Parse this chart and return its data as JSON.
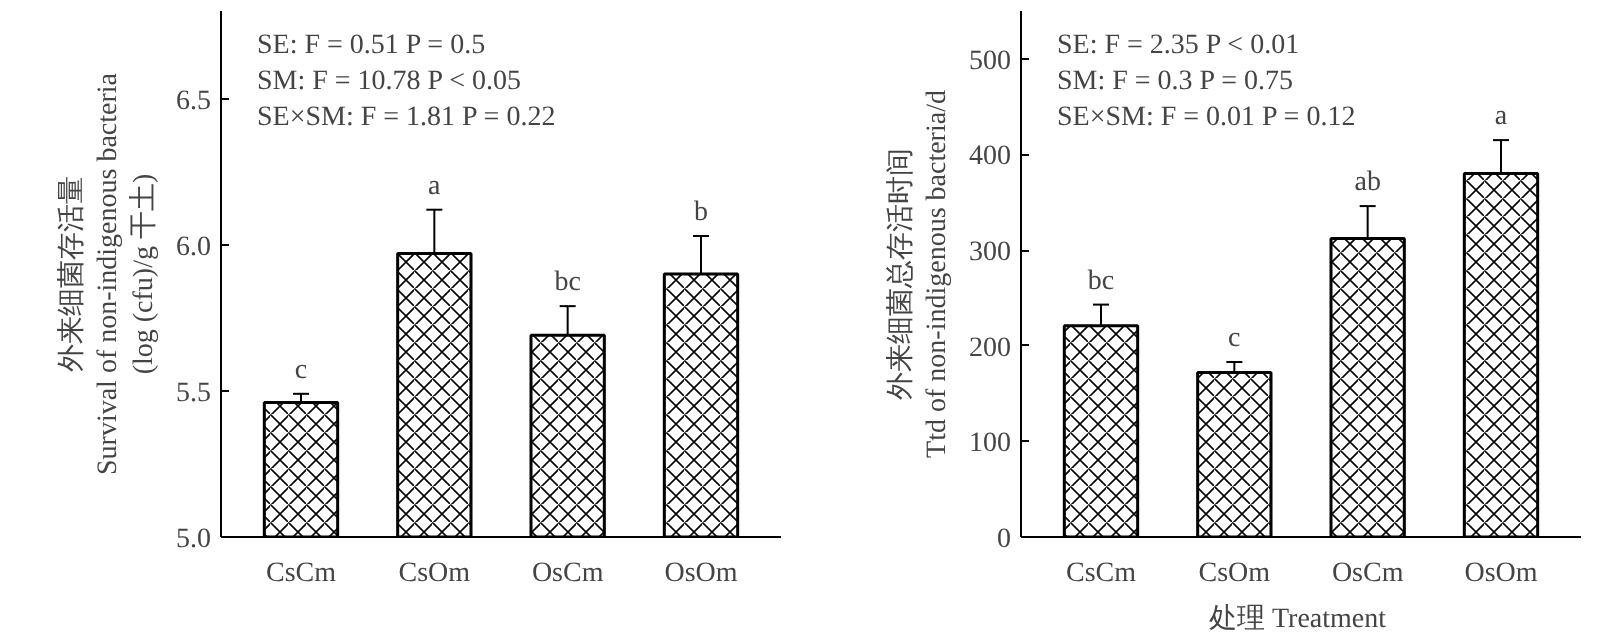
{
  "chart_data": [
    {
      "type": "bar",
      "categories": [
        "CsCm",
        "CsOm",
        "OsCm",
        "OsOm"
      ],
      "values": [
        5.46,
        5.97,
        5.69,
        5.9
      ],
      "errors": [
        0.03,
        0.15,
        0.1,
        0.13
      ],
      "color": "#ffffff",
      "ylabel": "外来细菌存活量\nSurvival of non-indigenous bacteria\n(log (cfu)/g 干土)",
      "ylim": [
        5.0,
        6.8
      ],
      "yticks": [
        {
          "value": 5.0,
          "label": "5.0"
        },
        {
          "value": 5.5,
          "label": "5.5"
        },
        {
          "value": 6.0,
          "label": "6.0"
        },
        {
          "value": 6.5,
          "label": "6.5"
        }
      ],
      "grid": false,
      "annotations": [
        "SE: F = 0.51    P = 0.5",
        "SM: F = 10.78    P < 0.05",
        "SE×SM: F = 1.81    P = 0.22",
        {
          "text": "c",
          "x": "CsCm",
          "y": 5.49
        },
        {
          "text": "a",
          "x": "CsOm",
          "y": 6.12
        },
        {
          "text": "bc",
          "x": "OsCm",
          "y": 5.79
        },
        {
          "text": "b",
          "x": "OsOm",
          "y": 6.03
        }
      ]
    },
    {
      "type": "bar",
      "categories": [
        "CsCm",
        "CsOm",
        "OsCm",
        "OsOm"
      ],
      "values": [
        221,
        172,
        312,
        380
      ],
      "errors": [
        22,
        11,
        34,
        35
      ],
      "color": "#ffffff",
      "xlabel": "处理  Treatment",
      "ylabel": "外来细菌总存活时间\nTtd of non-indigenous bacteria/d",
      "ylim": [
        0,
        550
      ],
      "yticks": [
        0,
        100,
        200,
        300,
        400,
        500
      ],
      "grid": false,
      "annotations": [
        "SE: F = 2.35    P < 0.01",
        "SM: F = 0.3    P = 0.75",
        "SE×SM: F = 0.01    P = 0.12",
        {
          "text": "bc",
          "x": "CsCm",
          "y": 243
        },
        {
          "text": "c",
          "x": "CsOm",
          "y": 183
        },
        {
          "text": "ab",
          "x": "OsCm",
          "y": 346
        },
        {
          "text": "a",
          "x": "OsOm",
          "y": 415
        }
      ]
    }
  ]
}
